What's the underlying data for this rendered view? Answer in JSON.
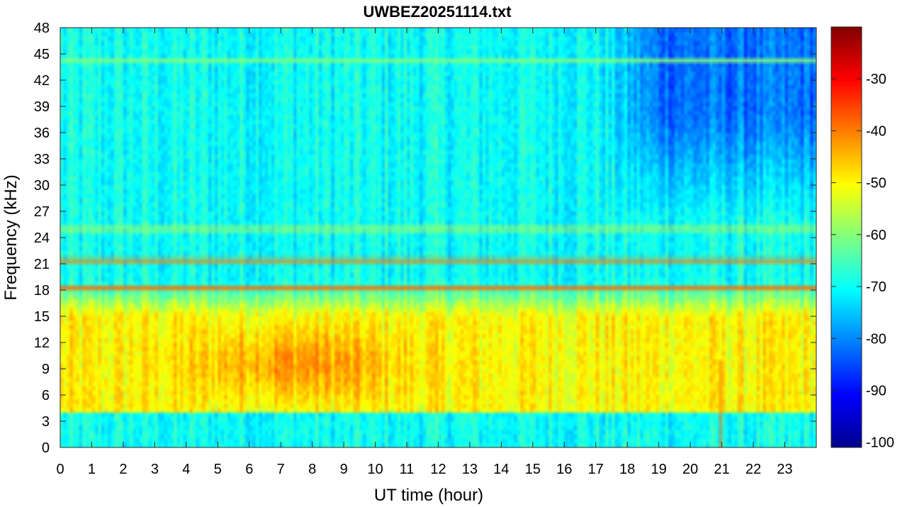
{
  "chart_data": {
    "type": "heatmap",
    "title": "UWBEZ20251114.txt",
    "xlabel": "UT time (hour)",
    "ylabel": "Frequency (kHz)",
    "xlim": [
      0,
      24
    ],
    "ylim": [
      0,
      48
    ],
    "xticks": [
      0,
      1,
      2,
      3,
      4,
      5,
      6,
      7,
      8,
      9,
      10,
      11,
      12,
      13,
      14,
      15,
      16,
      17,
      18,
      19,
      20,
      21,
      22,
      23
    ],
    "xtick_labels": [
      "0",
      "1",
      "2",
      "3",
      "4",
      "5",
      "6",
      "7",
      "8",
      "9",
      "10",
      "11",
      "12",
      "13",
      "14",
      "15",
      "16",
      "17",
      "18",
      "19",
      "20",
      "21",
      "22",
      "23"
    ],
    "yticks": [
      0,
      3,
      6,
      9,
      12,
      15,
      18,
      21,
      24,
      27,
      30,
      33,
      36,
      39,
      42,
      45,
      48
    ],
    "ytick_labels": [
      "0",
      "3",
      "6",
      "9",
      "12",
      "15",
      "18",
      "21",
      "24",
      "27",
      "30",
      "33",
      "36",
      "39",
      "42",
      "45",
      "48"
    ],
    "colorbar": {
      "colormap": "jet",
      "clim": [
        -101,
        -20
      ],
      "ticks": [
        -100,
        -90,
        -80,
        -70,
        -60,
        -50,
        -40,
        -30
      ],
      "tick_labels": [
        "-100",
        "-90",
        "-80",
        "-70",
        "-60",
        "-50",
        "-40",
        "-30"
      ]
    },
    "features": {
      "background_level_db": -70,
      "low_freq_band_khz": [
        4,
        15
      ],
      "low_freq_band_level_db": -50,
      "daytime_enhancement_hours": [
        5,
        10
      ],
      "daytime_enhancement_level_db": -42,
      "transmitter_lines": [
        {
          "freq_khz": 18.2,
          "level_db": -38,
          "hours": [
            0,
            24
          ]
        },
        {
          "freq_khz": 21.4,
          "level_db": -40,
          "hours": [
            0,
            24
          ]
        },
        {
          "freq_khz": 25.0,
          "level_db": -55,
          "hours": [
            0,
            24
          ]
        },
        {
          "freq_khz": 44.3,
          "level_db": -60,
          "hours": [
            0,
            24
          ]
        }
      ],
      "broadband_impulse_hour": 20.95,
      "night_quiet_hours": [
        17,
        24
      ],
      "night_quiet_level_db": -82
    }
  }
}
